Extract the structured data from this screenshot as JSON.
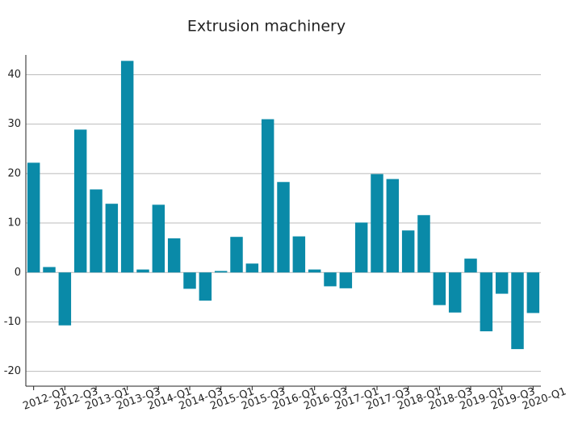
{
  "chart_data": {
    "type": "bar",
    "title": "Extrusion machinery",
    "categories": [
      "2012-Q1",
      null,
      "2012-Q3",
      null,
      "2013-Q1",
      null,
      "2013-Q3",
      null,
      "2014-Q1",
      null,
      "2014-Q3",
      null,
      "2015-Q1",
      null,
      "2015-Q3",
      null,
      "2016-Q1",
      null,
      "2016-Q3",
      null,
      "2017-Q1",
      null,
      "2017-Q3",
      null,
      "2018-Q1",
      null,
      "2018-Q3",
      null,
      "2019-Q1",
      null,
      "2019-Q3",
      null,
      "2020-Q1"
    ],
    "values": [
      22.2,
      1.1,
      -10.7,
      28.9,
      16.8,
      13.9,
      42.8,
      0.6,
      13.7,
      6.9,
      -3.3,
      -5.7,
      0.3,
      7.2,
      1.8,
      31.0,
      18.3,
      7.3,
      0.6,
      -2.8,
      -3.2,
      10.1,
      19.9,
      18.9,
      8.5,
      11.6,
      -6.6,
      -8.1,
      2.8,
      -11.9,
      -4.3,
      -15.5,
      -8.2
    ],
    "color": "#0a8aa8",
    "ylim": [
      -23,
      44
    ],
    "yticks": [
      -20,
      -10,
      0,
      10,
      20,
      30,
      40
    ],
    "grid": true
  }
}
